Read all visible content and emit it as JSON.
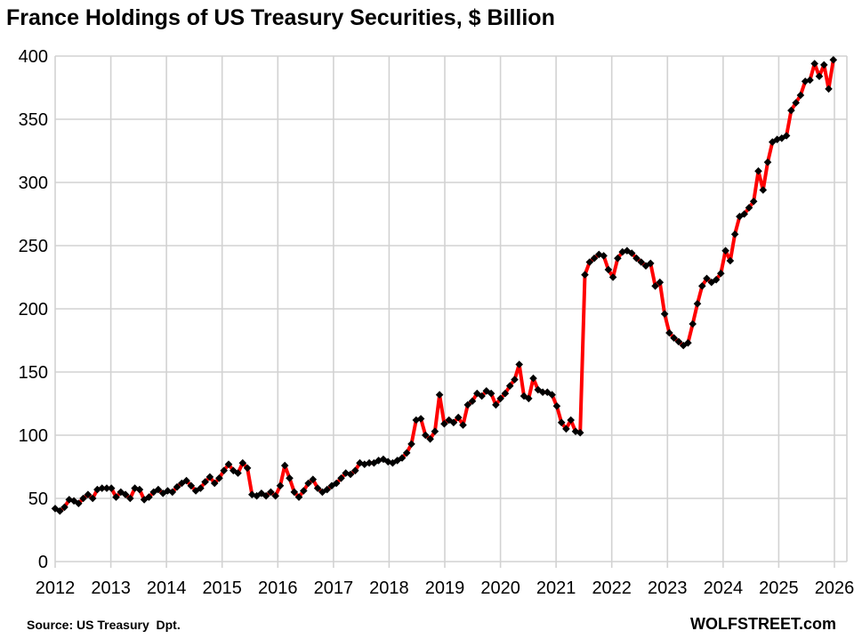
{
  "header": {
    "title": "France Holdings of US Treasury Securities, $ Billion"
  },
  "footer": {
    "source": "Source: US Treasury  Dpt.",
    "watermark": "WOLFSTREET.com"
  },
  "chart_data": {
    "type": "line",
    "title": "France Holdings of US Treasury Securities, $ Billion",
    "xlabel": "",
    "ylabel": "$ Billion",
    "grid": true,
    "legend_position": "none",
    "x_axis": {
      "tick_labels": [
        "2012",
        "2013",
        "2014",
        "2015",
        "2016",
        "2017",
        "2018",
        "2019",
        "2020",
        "2021",
        "2022",
        "2023",
        "2024",
        "2025",
        "2026"
      ]
    },
    "y_axis": {
      "min": 0,
      "max": 400,
      "step": 50,
      "tick_labels": [
        "0",
        "50",
        "100",
        "150",
        "200",
        "250",
        "300",
        "350",
        "400"
      ]
    },
    "colors": {
      "line": "#FF0000",
      "marker": "#000000",
      "grid": "#D2D2D2",
      "text": "#000000",
      "background": "#FFFFFF"
    },
    "series": [
      {
        "name": "France holdings of US Treasury securities",
        "unit": "USD billion",
        "frequency": "monthly",
        "first_month": "2012-01",
        "last_month": "2025-11",
        "marker": "diamond",
        "values": [
          42,
          40,
          43,
          49,
          48,
          46,
          50,
          53,
          50,
          57,
          58,
          58,
          58,
          51,
          55,
          53,
          50,
          58,
          57,
          49,
          51,
          55,
          57,
          54,
          56,
          55,
          59,
          62,
          64,
          60,
          56,
          58,
          63,
          67,
          62,
          66,
          72,
          77,
          72,
          70,
          78,
          74,
          53,
          52,
          54,
          52,
          55,
          52,
          60,
          76,
          66,
          55,
          51,
          56,
          62,
          65,
          58,
          55,
          57,
          60,
          62,
          66,
          70,
          69,
          72,
          78,
          77,
          78,
          78,
          80,
          81,
          79,
          78,
          80,
          82,
          86,
          93,
          112,
          113,
          100,
          97,
          103,
          132,
          109,
          112,
          110,
          114,
          108,
          124,
          127,
          133,
          131,
          135,
          133,
          124,
          129,
          133,
          139,
          144,
          156,
          131,
          129,
          145,
          136,
          134,
          134,
          132,
          123,
          110,
          105,
          112,
          103,
          102,
          227,
          237,
          240,
          243,
          242,
          231,
          225,
          240,
          245,
          246,
          244,
          240,
          237,
          234,
          236,
          218,
          221,
          196,
          181,
          177,
          174,
          171,
          173,
          188,
          204,
          218,
          224,
          221,
          223,
          228,
          246,
          238,
          259,
          273,
          275,
          280,
          285,
          309,
          294,
          316,
          332,
          334,
          335,
          337,
          357,
          363,
          369,
          380,
          381,
          394,
          384,
          393,
          374,
          397
        ]
      }
    ]
  }
}
